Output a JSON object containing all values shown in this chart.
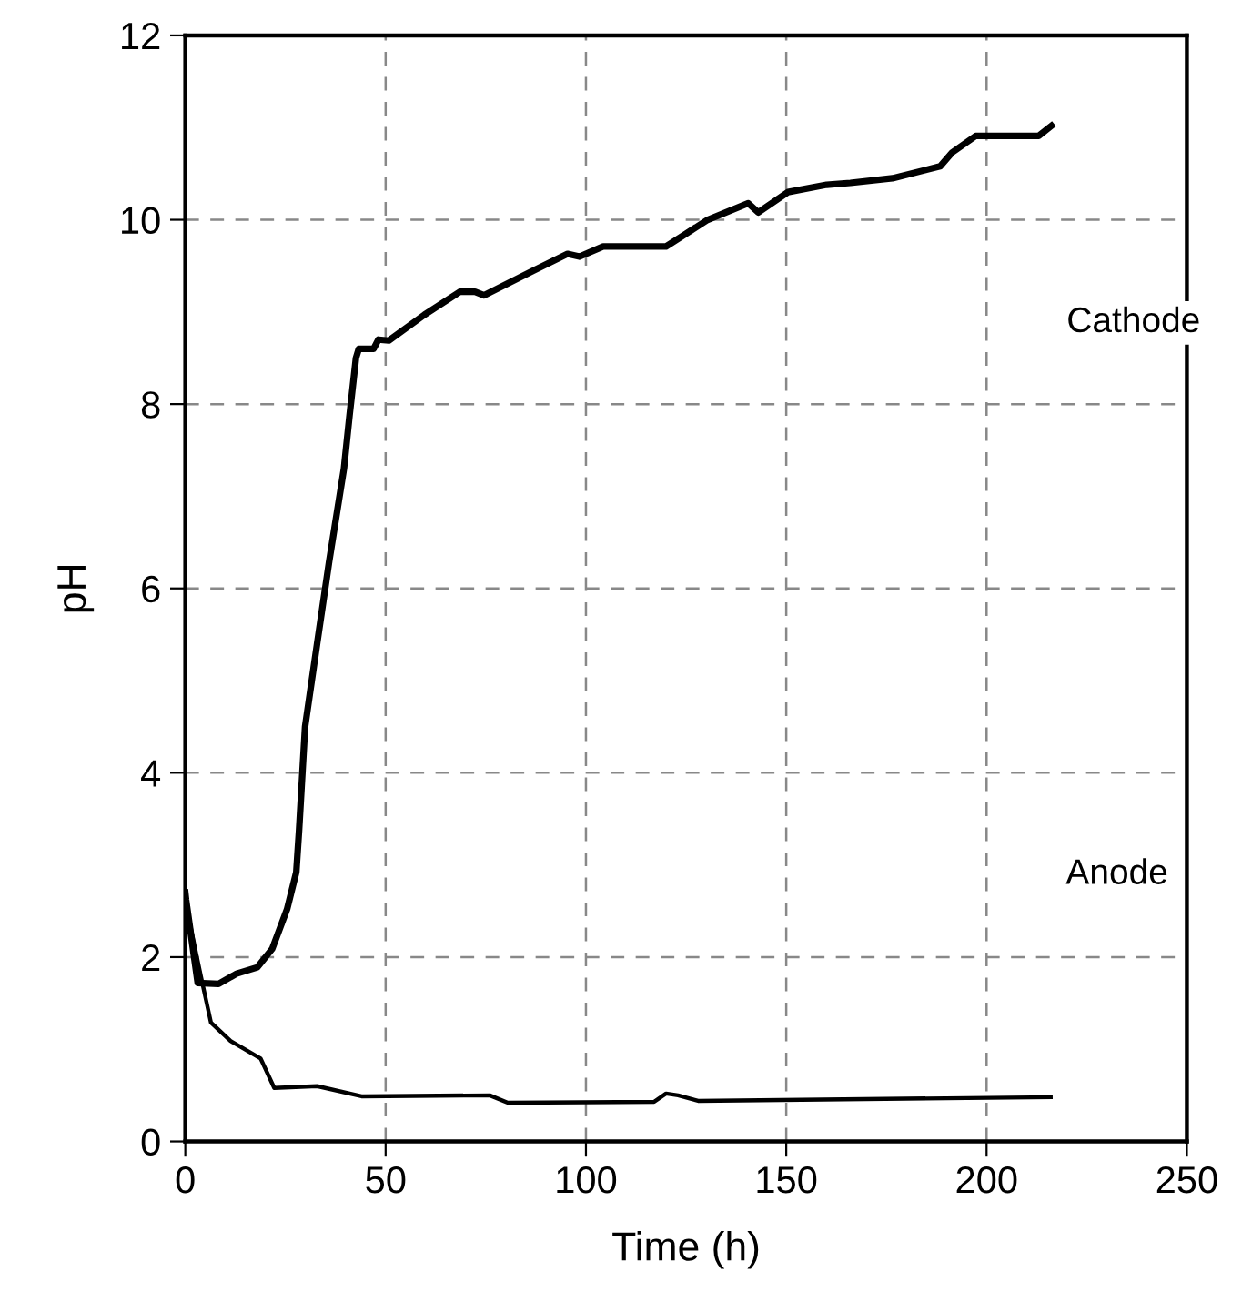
{
  "chart_data": {
    "type": "line",
    "xlabel": "Time (h)",
    "ylabel": "pH",
    "xlim": [
      0,
      250
    ],
    "xticks": [
      0,
      50,
      100,
      150,
      200,
      250
    ],
    "ylim": [
      0,
      12
    ],
    "yticks": [
      0,
      2,
      4,
      6,
      8,
      10,
      12
    ],
    "grid": true,
    "line_style": "solid",
    "marker": "none",
    "series": [
      {
        "name": "Cathode",
        "color": "#000000",
        "x": [
          0,
          0.2,
          3.1,
          8.3,
          12.8,
          18,
          21.7,
          25.4,
          27.7,
          28.4,
          29.9,
          32.9,
          35.9,
          39.6,
          41,
          42.6,
          43.3,
          47,
          48.2,
          50.8,
          59.7,
          68.6,
          72.3,
          74.6,
          86.5,
          95.4,
          98.4,
          104.3,
          120,
          130.4,
          140.5,
          143,
          150.4,
          160.1,
          166,
          176.5,
          188.4,
          191.4,
          197.3,
          213,
          216.2
        ],
        "values": [
          2.7,
          2.62,
          1.72,
          1.71,
          1.82,
          1.89,
          2.09,
          2.52,
          2.92,
          3.38,
          4.5,
          5.4,
          6.29,
          7.3,
          7.88,
          8.5,
          8.6,
          8.6,
          8.7,
          8.69,
          8.97,
          9.22,
          9.22,
          9.18,
          9.44,
          9.63,
          9.6,
          9.71,
          9.71,
          10.0,
          10.18,
          10.08,
          10.3,
          10.38,
          10.4,
          10.45,
          10.58,
          10.73,
          10.91,
          10.91,
          11.02
        ]
      },
      {
        "name": "Anode",
        "color": "#000000",
        "x": [
          0,
          0.5,
          3.9,
          6.4,
          11.3,
          18.8,
          22.2,
          32.9,
          44,
          76,
          80.5,
          117,
          120,
          123,
          128,
          216
        ],
        "values": [
          2.7,
          2.5,
          1.79,
          1.29,
          1.09,
          0.9,
          0.58,
          0.6,
          0.49,
          0.5,
          0.42,
          0.43,
          0.52,
          0.5,
          0.44,
          0.48
        ]
      }
    ]
  }
}
